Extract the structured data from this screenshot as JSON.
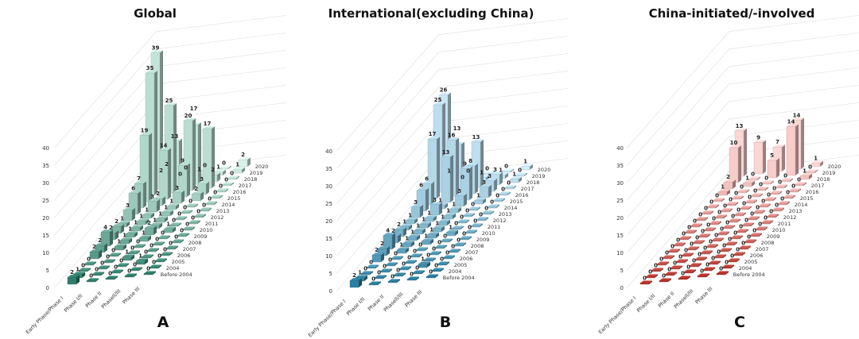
{
  "chart_data": [
    {
      "type": "bar",
      "subtype": "3d-bar",
      "title": "Global",
      "panel_label": "A",
      "zlim": [
        0,
        40
      ],
      "z_ticks": [
        0,
        5,
        10,
        15,
        20,
        25,
        30,
        35,
        40
      ],
      "phases": [
        "Early Phase/Phase I",
        "Phase I/II",
        "Phase II",
        "PhaseII/III",
        "Phase III"
      ],
      "years": [
        "Before 2004",
        "2004",
        "2005",
        "2006",
        "2007",
        "2008",
        "2009",
        "2010",
        "2011",
        "2012",
        "2013",
        "2014",
        "2015",
        "2016",
        "2017",
        "2018",
        "2019",
        "2020"
      ],
      "colors": {
        "front": "#2f7f6c",
        "back": "#d9f2e8"
      },
      "series": [
        {
          "name": "Early Phase/Phase I",
          "values": [
            2,
            1,
            0,
            0,
            2,
            2,
            4,
            2,
            2,
            1,
            3,
            6,
            7,
            19,
            35,
            39,
            2,
            2
          ]
        },
        {
          "name": "Phase I/II",
          "values": [
            0,
            0,
            0,
            0,
            0,
            1,
            1,
            1,
            1,
            1,
            1,
            3,
            2,
            14,
            25,
            13,
            0,
            0
          ]
        },
        {
          "name": "Phase II",
          "values": [
            0,
            0,
            0,
            1,
            0,
            0,
            1,
            2,
            1,
            1,
            1,
            1,
            3,
            9,
            20,
            17,
            1,
            0
          ]
        },
        {
          "name": "PhaseII/III",
          "values": [
            0,
            0,
            1,
            0,
            0,
            0,
            0,
            1,
            0,
            0,
            0,
            0,
            2,
            3,
            17,
            2,
            1,
            0
          ]
        },
        {
          "name": "Phase III",
          "values": [
            0,
            0,
            0,
            0,
            0,
            0,
            0,
            0,
            0,
            0,
            0,
            0,
            0,
            0,
            0,
            0,
            1,
            2
          ]
        }
      ]
    },
    {
      "type": "bar",
      "subtype": "3d-bar",
      "title": "International(excluding China)",
      "panel_label": "B",
      "zlim": [
        0,
        40
      ],
      "z_ticks": [
        0,
        5,
        10,
        15,
        20,
        25,
        30,
        35,
        40
      ],
      "phases": [
        "Early Phase/Phase I",
        "Phase I/II",
        "Phase II",
        "PhaseII/III",
        "Phase III"
      ],
      "years": [
        "Before 2004",
        "2004",
        "2005",
        "2006",
        "2007",
        "2008",
        "2009",
        "2010",
        "2011",
        "2012",
        "2013",
        "2014",
        "2015",
        "2016",
        "2017",
        "2018",
        "2019",
        "2020"
      ],
      "colors": {
        "front": "#2b7fa0",
        "back": "#d2ebf8"
      },
      "series": [
        {
          "name": "Early Phase/Phase I",
          "values": [
            2,
            1,
            0,
            0,
            2,
            2,
            4,
            2,
            2,
            1,
            1,
            3,
            6,
            6,
            17,
            25,
            26,
            1
          ]
        },
        {
          "name": "Phase I/II",
          "values": [
            0,
            0,
            0,
            0,
            0,
            1,
            1,
            1,
            1,
            1,
            1,
            3,
            1,
            13,
            16,
            13,
            0,
            0
          ]
        },
        {
          "name": "Phase II",
          "values": [
            0,
            0,
            0,
            0,
            0,
            0,
            1,
            1,
            1,
            1,
            1,
            1,
            3,
            9,
            8,
            13,
            1,
            0
          ]
        },
        {
          "name": "PhaseII/III",
          "values": [
            0,
            0,
            1,
            0,
            0,
            0,
            0,
            1,
            0,
            0,
            0,
            0,
            1,
            3,
            3,
            3,
            1,
            0
          ]
        },
        {
          "name": "Phase III",
          "values": [
            0,
            0,
            0,
            0,
            0,
            0,
            0,
            0,
            0,
            0,
            0,
            0,
            0,
            0,
            0,
            1,
            0,
            1
          ]
        }
      ]
    },
    {
      "type": "bar",
      "subtype": "3d-bar",
      "title": "China-initiated/-involved",
      "panel_label": "C",
      "zlim": [
        0,
        40
      ],
      "z_ticks": [
        0,
        5,
        10,
        15,
        20,
        25,
        30,
        35,
        40
      ],
      "phases": [
        "Early Phase/Phase I",
        "Phase I/II",
        "Phase II",
        "PhaseII/III",
        "Phase III"
      ],
      "years": [
        "Before 2004",
        "2004",
        "2005",
        "2006",
        "2007",
        "2008",
        "2009",
        "2010",
        "2011",
        "2012",
        "2013",
        "2014",
        "2015",
        "2016",
        "2017",
        "2018",
        "2019",
        "2020"
      ],
      "colors": {
        "front": "#b8332a",
        "back": "#fbd6d3"
      },
      "series": [
        {
          "name": "Early Phase/Phase I",
          "values": [
            0,
            0,
            0,
            0,
            0,
            0,
            0,
            0,
            0,
            0,
            0,
            0,
            0,
            0,
            1,
            2,
            10,
            13
          ]
        },
        {
          "name": "Phase I/II",
          "values": [
            0,
            0,
            0,
            0,
            0,
            0,
            0,
            0,
            0,
            0,
            0,
            0,
            0,
            0,
            0,
            1,
            0,
            9
          ]
        },
        {
          "name": "Phase II",
          "values": [
            0,
            0,
            0,
            0,
            0,
            0,
            0,
            0,
            0,
            0,
            0,
            0,
            0,
            0,
            0,
            0,
            5,
            7
          ]
        },
        {
          "name": "PhaseII/III",
          "values": [
            0,
            0,
            0,
            0,
            0,
            0,
            0,
            0,
            0,
            0,
            0,
            0,
            0,
            0,
            0,
            0,
            14,
            14
          ]
        },
        {
          "name": "Phase III",
          "values": [
            0,
            0,
            0,
            0,
            0,
            0,
            0,
            0,
            0,
            0,
            0,
            0,
            0,
            0,
            0,
            1,
            0,
            1
          ]
        }
      ]
    }
  ]
}
